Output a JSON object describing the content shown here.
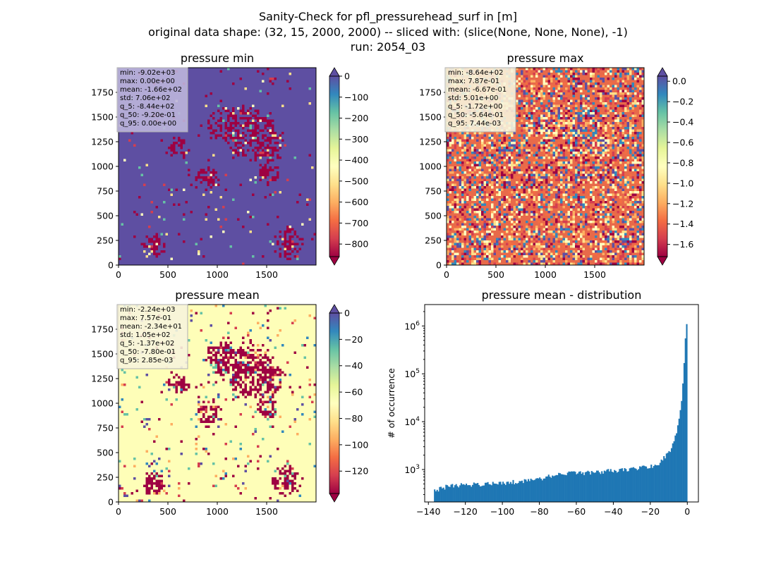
{
  "figure": {
    "suptitle_lines": [
      "Sanity-Check for pfl_pressurehead_surf in [m]",
      "original data shape: (32, 15, 2000, 2000) -- sliced with: (slice(None, None, None), -1)",
      "run: 2054_03"
    ]
  },
  "chart_data": [
    {
      "type": "heatmap",
      "title": "pressure min",
      "colormap": "Spectral",
      "xlim": [
        0,
        2000
      ],
      "ylim": [
        0,
        2000
      ],
      "xticks": [
        0,
        500,
        1000,
        1500
      ],
      "yticks": [
        0,
        250,
        500,
        750,
        1000,
        1250,
        1500,
        1750
      ],
      "colorbar": {
        "range": [
          -860,
          0
        ],
        "ticks": [
          0,
          -100,
          -200,
          -300,
          -400,
          -500,
          -600,
          -700,
          -800
        ],
        "extend": "both"
      },
      "stats": [
        "min: -9.02e+03",
        "max: 0.00e+00",
        "mean: -1.66e+02",
        "std: 7.06e+02",
        "q_5: -8.44e+02",
        "q_50: -9.20e-01",
        "q_95: 0.00e+00"
      ],
      "background_color": "#5e4fa2"
    },
    {
      "type": "heatmap",
      "title": "pressure max",
      "colormap": "Spectral",
      "xlim": [
        0,
        2000
      ],
      "ylim": [
        0,
        2000
      ],
      "xticks": [
        0,
        500,
        1000,
        1500
      ],
      "yticks": [
        0,
        250,
        500,
        750,
        1000,
        1250,
        1500,
        1750
      ],
      "colorbar": {
        "range": [
          -1.72,
          0.05
        ],
        "ticks": [
          "0.0",
          "-0.2",
          "-0.4",
          "-0.6",
          "-0.8",
          "-1.0",
          "-1.2",
          "-1.4",
          "-1.6"
        ],
        "extend": "both"
      },
      "stats": [
        "min: -8.64e+02",
        "max: 7.87e-01",
        "mean: -6.67e-01",
        "std: 5.01e+00",
        "q_5: -1.72e+00",
        "q_50: -5.64e-01",
        "q_95: 7.44e-03"
      ],
      "background_color": "#e86a4a"
    },
    {
      "type": "heatmap",
      "title": "pressure mean",
      "colormap": "Spectral",
      "xlim": [
        0,
        2000
      ],
      "ylim": [
        0,
        2000
      ],
      "xticks": [
        0,
        500,
        1000,
        1500
      ],
      "yticks": [
        0,
        250,
        500,
        750,
        1000,
        1250,
        1500,
        1750
      ],
      "colorbar": {
        "range": [
          -137,
          0
        ],
        "ticks": [
          0,
          -20,
          -40,
          -60,
          -80,
          -100,
          -120
        ],
        "extend": "both"
      },
      "stats": [
        "min: -2.24e+03",
        "max: 7.57e-01",
        "mean: -2.34e+01",
        "std: 1.05e+02",
        "q_5: -1.37e+02",
        "q_50: -7.80e-01",
        "q_95: 2.85e-03"
      ],
      "background_color": "#fefeb8"
    },
    {
      "type": "bar",
      "title": "pressure mean - distribution",
      "ylabel": "# of occurrence",
      "yscale": "log",
      "xlim": [
        -142,
        6
      ],
      "ylim": [
        210,
        2800000
      ],
      "xticks": [
        -140,
        -120,
        -100,
        -80,
        -60,
        -40,
        -20,
        0
      ],
      "ytick_labels": [
        {
          "value": 1000,
          "mantissa": "10",
          "exp": "3"
        },
        {
          "value": 10000,
          "mantissa": "10",
          "exp": "4"
        },
        {
          "value": 100000,
          "mantissa": "10",
          "exp": "5"
        },
        {
          "value": 1000000,
          "mantissa": "10",
          "exp": "6"
        }
      ],
      "bar_color": "#1f77b4",
      "bin_range": [
        -137,
        0
      ],
      "bin_width": 0.685,
      "anchors": [
        {
          "x": -137,
          "y": 360
        },
        {
          "x": -130,
          "y": 440
        },
        {
          "x": -120,
          "y": 480
        },
        {
          "x": -110,
          "y": 500
        },
        {
          "x": -100,
          "y": 510
        },
        {
          "x": -90,
          "y": 570
        },
        {
          "x": -80,
          "y": 640
        },
        {
          "x": -70,
          "y": 790
        },
        {
          "x": -60,
          "y": 850
        },
        {
          "x": -50,
          "y": 860
        },
        {
          "x": -40,
          "y": 950
        },
        {
          "x": -30,
          "y": 1020
        },
        {
          "x": -20,
          "y": 1150
        },
        {
          "x": -15,
          "y": 1400
        },
        {
          "x": -10,
          "y": 2200
        },
        {
          "x": -7,
          "y": 4000
        },
        {
          "x": -5,
          "y": 8000
        },
        {
          "x": -3,
          "y": 30000
        },
        {
          "x": -2,
          "y": 100000
        },
        {
          "x": -1,
          "y": 600000
        },
        {
          "x": 0,
          "y": 1700000
        }
      ]
    }
  ]
}
